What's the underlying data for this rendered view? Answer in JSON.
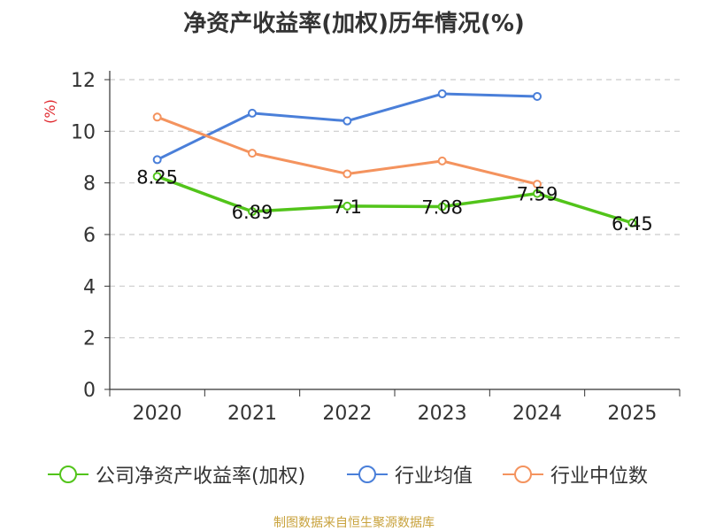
{
  "title": "净资产收益率(加权)历年情况(%)",
  "source": "制图数据来自恒生聚源数据库",
  "chart_data": {
    "type": "line",
    "title": "净资产收益率(加权)历年情况(%)",
    "ylabel": "(%)",
    "xlabel": "",
    "categories": [
      "2020",
      "2021",
      "2022",
      "2023",
      "2024",
      "2025"
    ],
    "ylim": [
      0,
      12
    ],
    "yticks": [
      "0",
      "2",
      "4",
      "6",
      "8",
      "10",
      "12"
    ],
    "grid": true,
    "legend_position": "bottom",
    "series": [
      {
        "name": "公司净资产收益率(加权)",
        "color": "#52c41a",
        "values": [
          8.25,
          6.89,
          7.1,
          7.08,
          7.59,
          6.45
        ],
        "labels": [
          "8.25",
          "6.89",
          "7.1",
          "7.08",
          "7.59",
          "6.45"
        ]
      },
      {
        "name": "行业均值",
        "color": "#4a7fd9",
        "values": [
          8.9,
          10.7,
          10.4,
          11.45,
          11.35,
          null
        ]
      },
      {
        "name": "行业中位数",
        "color": "#f4935e",
        "values": [
          10.55,
          9.15,
          8.35,
          8.85,
          7.95,
          null
        ]
      }
    ]
  }
}
